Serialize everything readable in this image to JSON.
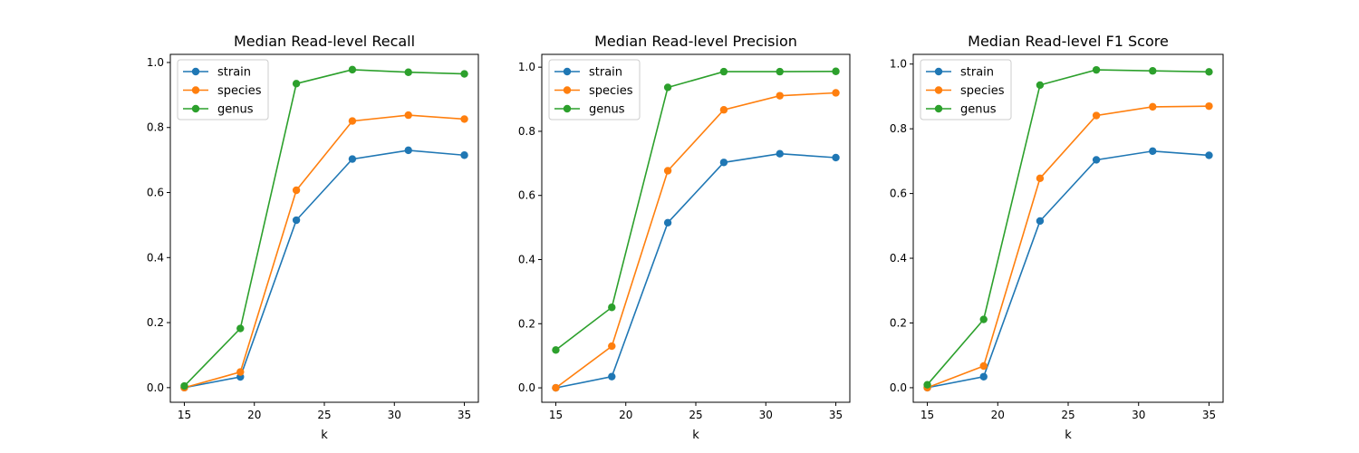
{
  "chart_data": [
    {
      "type": "line",
      "title": "Median Read-level Recall",
      "xlabel": "k",
      "ylabel": "",
      "x": [
        15,
        19,
        23,
        27,
        31,
        35
      ],
      "xlim": [
        14.0,
        36.0
      ],
      "ylim": [
        -0.045,
        1.025
      ],
      "xticks": [
        "15",
        "20",
        "25",
        "30",
        "35"
      ],
      "yticks": [
        "0.0",
        "0.2",
        "0.4",
        "0.6",
        "0.8",
        "1.0"
      ],
      "grid": false,
      "legend": "upper-left",
      "series": [
        {
          "name": "strain",
          "color": "#1f77b4",
          "values": [
            0.0,
            0.033,
            0.515,
            0.703,
            0.73,
            0.715
          ]
        },
        {
          "name": "species",
          "color": "#ff7f0e",
          "values": [
            0.0,
            0.048,
            0.607,
            0.82,
            0.838,
            0.826
          ]
        },
        {
          "name": "genus",
          "color": "#2ca02c",
          "values": [
            0.005,
            0.182,
            0.935,
            0.978,
            0.97,
            0.965
          ]
        }
      ]
    },
    {
      "type": "line",
      "title": "Median Read-level Precision",
      "xlabel": "k",
      "ylabel": "",
      "x": [
        15,
        19,
        23,
        27,
        31,
        35
      ],
      "xlim": [
        14.0,
        36.0
      ],
      "ylim": [
        -0.045,
        1.04
      ],
      "xticks": [
        "15",
        "20",
        "25",
        "30",
        "35"
      ],
      "yticks": [
        "0.0",
        "0.2",
        "0.4",
        "0.6",
        "0.8",
        "1.0"
      ],
      "grid": false,
      "legend": "upper-left",
      "series": [
        {
          "name": "strain",
          "color": "#1f77b4",
          "values": [
            0.0,
            0.035,
            0.515,
            0.703,
            0.73,
            0.718
          ]
        },
        {
          "name": "species",
          "color": "#ff7f0e",
          "values": [
            0.0,
            0.13,
            0.677,
            0.867,
            0.911,
            0.92
          ]
        },
        {
          "name": "genus",
          "color": "#2ca02c",
          "values": [
            0.118,
            0.251,
            0.937,
            0.986,
            0.986,
            0.987
          ]
        }
      ]
    },
    {
      "type": "line",
      "title": "Median Read-level F1 Score",
      "xlabel": "k",
      "ylabel": "",
      "x": [
        15,
        19,
        23,
        27,
        31,
        35
      ],
      "xlim": [
        14.0,
        36.0
      ],
      "ylim": [
        -0.045,
        1.03
      ],
      "xticks": [
        "15",
        "20",
        "25",
        "30",
        "35"
      ],
      "yticks": [
        "0.0",
        "0.2",
        "0.4",
        "0.6",
        "0.8",
        "1.0"
      ],
      "grid": false,
      "legend": "upper-left",
      "series": [
        {
          "name": "strain",
          "color": "#1f77b4",
          "values": [
            0.0,
            0.034,
            0.515,
            0.704,
            0.731,
            0.718
          ]
        },
        {
          "name": "species",
          "color": "#ff7f0e",
          "values": [
            0.0,
            0.067,
            0.647,
            0.841,
            0.868,
            0.87
          ]
        },
        {
          "name": "genus",
          "color": "#2ca02c",
          "values": [
            0.009,
            0.211,
            0.935,
            0.982,
            0.979,
            0.976
          ]
        }
      ]
    }
  ]
}
